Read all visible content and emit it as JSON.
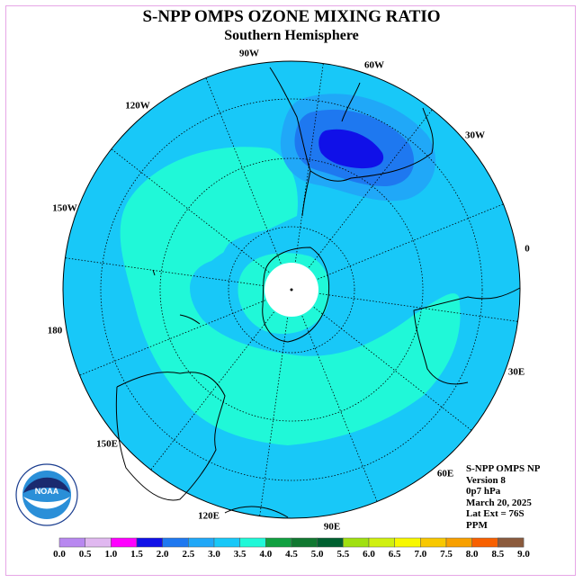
{
  "title": "S-NPP OMPS OZONE MIXING RATIO",
  "subtitle": "Southern Hemisphere",
  "logo_text": "NOAA",
  "info": {
    "instrument": "S-NPP OMPS NP",
    "version": "Version 8",
    "pressure": "0p7 hPa",
    "date": "March 20, 2025",
    "lat_ext": "Lat Ext = 76S",
    "units": "PPM"
  },
  "longitude_labels": [
    {
      "text": "90W"
    },
    {
      "text": "60W"
    },
    {
      "text": "30W"
    },
    {
      "text": "0"
    },
    {
      "text": "30E"
    },
    {
      "text": "60E"
    },
    {
      "text": "90E"
    },
    {
      "text": "120E"
    },
    {
      "text": "150E"
    },
    {
      "text": "180"
    },
    {
      "text": "150W"
    },
    {
      "text": "120W"
    }
  ],
  "colorbar": {
    "ticks": [
      "0.0",
      "0.5",
      "1.0",
      "1.5",
      "2.0",
      "2.5",
      "3.0",
      "3.5",
      "4.0",
      "4.5",
      "5.0",
      "5.5",
      "6.0",
      "6.5",
      "7.0",
      "7.5",
      "8.0",
      "8.5",
      "9.0"
    ],
    "colors": [
      "#b888f0",
      "#e0b8f0",
      "#ff00ff",
      "#1010e8",
      "#1e78f0",
      "#20a8f8",
      "#18c8f8",
      "#20f8d8",
      "#10a040",
      "#107830",
      "#006030",
      "#a0e010",
      "#d0f010",
      "#f8f800",
      "#f8c800",
      "#f8a000",
      "#f86000",
      "#f80000",
      "#8b5a3c"
    ]
  },
  "colors": {
    "background_field": "#18c8f8",
    "band_3_5_to_4": "#20f8d8",
    "band_2_5_to_3": "#20a8f8",
    "band_2_0_to_2_5": "#1e78f0",
    "band_1_5_to_2_0": "#1010e8",
    "no_data": "#ffffff"
  }
}
